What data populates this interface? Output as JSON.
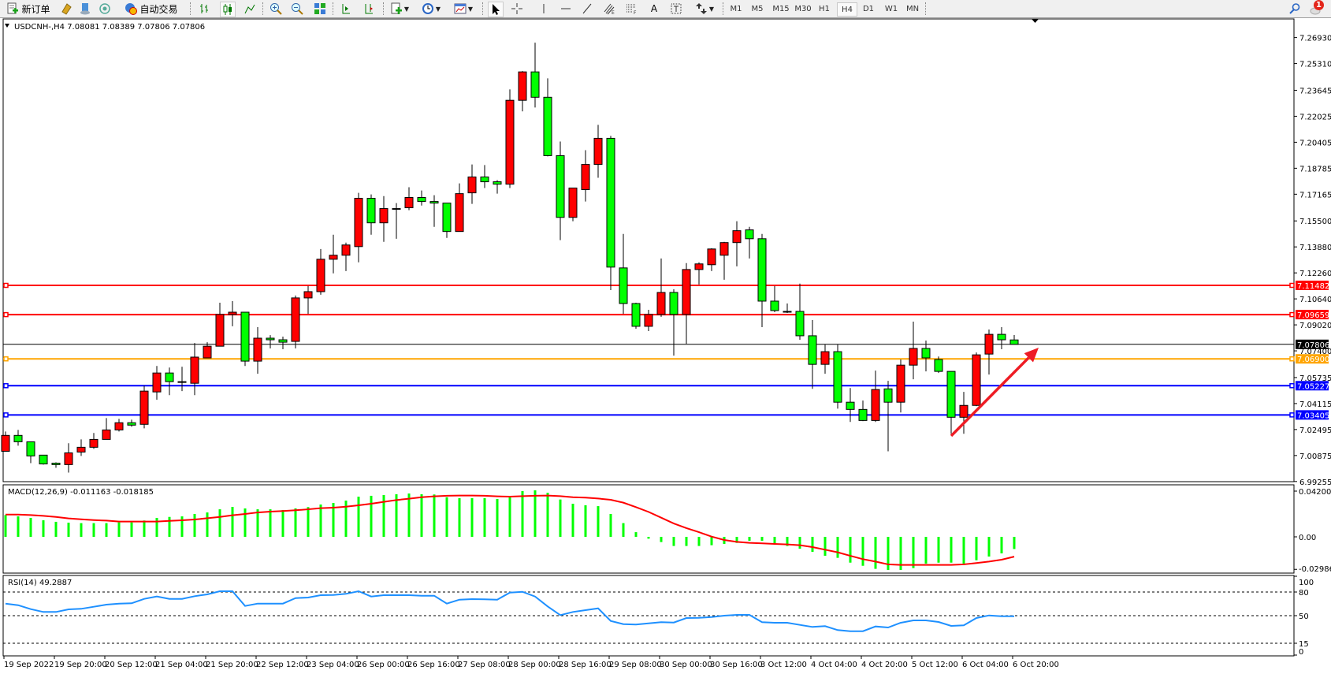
{
  "toolbar": {
    "new_order_label": "新订单",
    "auto_trading_label": "自动交易",
    "timeframes": [
      "M1",
      "M5",
      "M15",
      "M30",
      "H1",
      "H4",
      "D1",
      "W1",
      "MN"
    ],
    "active_timeframe": "H4",
    "notification_count": "1",
    "icons": [
      "new-order-icon",
      "metaeditor-icon",
      "navigator-icon",
      "signals-icon",
      "auto-trading-icon",
      "bar-chart-icon",
      "candlestick-icon",
      "line-chart-icon",
      "zoom-in-icon",
      "zoom-out-icon",
      "tile-windows-icon",
      "auto-scroll-icon",
      "chart-shift-icon",
      "indicators-icon",
      "periods-icon",
      "templates-icon",
      "cursor-icon",
      "crosshair-icon",
      "vertical-line-icon",
      "horizontal-line-icon",
      "trendline-icon",
      "fibo-channel-icon",
      "fibo-retracement-icon",
      "text-icon",
      "text-label-icon",
      "arrows-icon",
      "search-icon",
      "notification-icon"
    ]
  },
  "chart": {
    "header": "USDCNH-,H4  7.08081 7.08389 7.07806 7.07806",
    "up_color": "#ff0000",
    "down_color": "#00ff00"
  },
  "chart_data": [
    {
      "type": "candlestick",
      "symbol": "USDCNH-",
      "timeframe": "H4",
      "ylim": [
        6.99255,
        7.2693
      ],
      "y_ticks": [
        "7.26930",
        "7.25310",
        "7.23645",
        "7.22025",
        "7.20405",
        "7.18785",
        "7.17165",
        "7.15500",
        "7.13880",
        "7.12260",
        "7.10640",
        "7.09020",
        "7.07400",
        "7.05735",
        "7.04115",
        "7.02495",
        "7.00875",
        "6.99255"
      ],
      "x_ticks": [
        "19 Sep 2022",
        "19 Sep 20:00",
        "20 Sep 12:00",
        "21 Sep 04:00",
        "21 Sep 20:00",
        "22 Sep 12:00",
        "23 Sep 04:00",
        "26 Sep 00:00",
        "26 Sep 16:00",
        "27 Sep 08:00",
        "28 Sep 00:00",
        "28 Sep 16:00",
        "29 Sep 08:00",
        "30 Sep 00:00",
        "30 Sep 16:00",
        "3 Oct 12:00",
        "4 Oct 04:00",
        "4 Oct 20:00",
        "5 Oct 12:00",
        "6 Oct 04:00",
        "6 Oct 20:00"
      ],
      "ohlc": [
        [
          7.0114,
          7.0237,
          7.0114,
          7.0213
        ],
        [
          7.0213,
          7.0247,
          7.0149,
          7.0173
        ],
        [
          7.0173,
          7.0173,
          7.004,
          7.0085
        ],
        [
          7.009,
          7.009,
          7.0031,
          7.0035
        ],
        [
          7.004,
          7.0045,
          7.0011,
          7.0031
        ],
        [
          7.0031,
          7.0164,
          6.9981,
          7.0104
        ],
        [
          7.0109,
          7.0188,
          7.0085,
          7.0139
        ],
        [
          7.0139,
          7.0228,
          7.0129,
          7.0188
        ],
        [
          7.0188,
          7.0321,
          7.0188,
          7.0247
        ],
        [
          7.0247,
          7.0316,
          7.0237,
          7.0292
        ],
        [
          7.0292,
          7.0311,
          7.0267,
          7.0277
        ],
        [
          7.0282,
          7.0523,
          7.0257,
          7.0489
        ],
        [
          7.0484,
          7.0646,
          7.0435,
          7.0602
        ],
        [
          7.0602,
          7.0636,
          7.0464,
          7.0548
        ],
        [
          7.0548,
          7.0641,
          7.0489,
          7.0548
        ],
        [
          7.0538,
          7.0789,
          7.0464,
          7.0701
        ],
        [
          7.0696,
          7.0794,
          7.0696,
          7.0769
        ],
        [
          7.0769,
          7.104,
          7.0769,
          7.0967
        ],
        [
          7.0967,
          7.105,
          7.0893,
          7.0981
        ],
        [
          7.0981,
          7.0981,
          7.0646,
          7.0676
        ],
        [
          7.0676,
          7.0888,
          7.0597,
          7.0819
        ],
        [
          7.0819,
          7.0838,
          7.0755,
          7.0809
        ],
        [
          7.0809,
          7.0829,
          7.075,
          7.0794
        ],
        [
          7.0799,
          7.1085,
          7.0755,
          7.107
        ],
        [
          7.107,
          7.1144,
          7.0971,
          7.1109
        ],
        [
          7.1109,
          7.1375,
          7.109,
          7.1311
        ],
        [
          7.1311,
          7.1464,
          7.1223,
          7.1336
        ],
        [
          7.1336,
          7.1415,
          7.1237,
          7.14
        ],
        [
          7.139,
          7.1725,
          7.1292,
          7.1691
        ],
        [
          7.1691,
          7.1715,
          7.1464,
          7.1538
        ],
        [
          7.1538,
          7.1705,
          7.142,
          7.1627
        ],
        [
          7.1627,
          7.1661,
          7.1439,
          7.1627
        ],
        [
          7.1632,
          7.176,
          7.1617,
          7.1696
        ],
        [
          7.1696,
          7.174,
          7.1646,
          7.1671
        ],
        [
          7.1671,
          7.171,
          7.1513,
          7.1661
        ],
        [
          7.1661,
          7.1661,
          7.1444,
          7.1484
        ],
        [
          7.1484,
          7.1784,
          7.1484,
          7.172
        ],
        [
          7.1725,
          7.1902,
          7.1656,
          7.1824
        ],
        [
          7.1824,
          7.1898,
          7.1755,
          7.1794
        ],
        [
          7.1794,
          7.1804,
          7.172,
          7.1779
        ],
        [
          7.1779,
          7.237,
          7.1755,
          7.2302
        ],
        [
          7.2302,
          7.2484,
          7.2233,
          7.2479
        ],
        [
          7.2479,
          7.2661,
          7.2257,
          7.2321
        ],
        [
          7.2321,
          7.2439,
          7.1952,
          7.1957
        ],
        [
          7.1957,
          7.2045,
          7.143,
          7.1572
        ],
        [
          7.1572,
          7.1755,
          7.1548,
          7.1755
        ],
        [
          7.1745,
          7.1991,
          7.1671,
          7.1902
        ],
        [
          7.1902,
          7.2149,
          7.1819,
          7.2065
        ],
        [
          7.2065,
          7.208,
          7.1119,
          7.1262
        ],
        [
          7.1257,
          7.1469,
          7.0971,
          7.1035
        ],
        [
          7.1035,
          7.104,
          7.0878,
          7.0893
        ],
        [
          7.0893,
          7.0996,
          7.0863,
          7.0967
        ],
        [
          7.0967,
          7.1316,
          7.0952,
          7.1104
        ],
        [
          7.1104,
          7.1124,
          7.071,
          7.0967
        ],
        [
          7.0967,
          7.1287,
          7.0784,
          7.1247
        ],
        [
          7.1247,
          7.1292,
          7.1154,
          7.1282
        ],
        [
          7.1277,
          7.138,
          7.1237,
          7.1375
        ],
        [
          7.1336,
          7.142,
          7.1183,
          7.1415
        ],
        [
          7.1415,
          7.1548,
          7.1267,
          7.1489
        ],
        [
          7.1494,
          7.1513,
          7.1316,
          7.1439
        ],
        [
          7.1439,
          7.1469,
          7.0888,
          7.105
        ],
        [
          7.105,
          7.1144,
          7.0981,
          7.0991
        ],
        [
          7.0986,
          7.1035,
          7.0976,
          7.0986
        ],
        [
          7.0986,
          7.1159,
          7.0809,
          7.0834
        ],
        [
          7.0834,
          7.0932,
          7.0503,
          7.0656
        ],
        [
          7.0656,
          7.0779,
          7.0597,
          7.0735
        ],
        [
          7.0735,
          7.0779,
          7.038,
          7.042
        ],
        [
          7.042,
          7.0508,
          7.0297,
          7.0375
        ],
        [
          7.0375,
          7.043,
          7.0302,
          7.0306
        ],
        [
          7.0306,
          7.0617,
          7.0297,
          7.0499
        ],
        [
          7.0503,
          7.0553,
          7.0114,
          7.042
        ],
        [
          7.042,
          7.0686,
          7.0356,
          7.0651
        ],
        [
          7.0651,
          7.0922,
          7.0563,
          7.0755
        ],
        [
          7.0755,
          7.0804,
          7.0612,
          7.0696
        ],
        [
          7.0686,
          7.0705,
          7.0602,
          7.0612
        ],
        [
          7.0612,
          7.0612,
          7.0223,
          7.0326
        ],
        [
          7.0326,
          7.0484,
          7.0223,
          7.04
        ],
        [
          7.04,
          7.073,
          7.0395,
          7.0715
        ],
        [
          7.072,
          7.0873,
          7.0592,
          7.0843
        ],
        [
          7.0843,
          7.0888,
          7.075,
          7.0809
        ],
        [
          7.08081,
          7.08389,
          7.07806,
          7.07806
        ]
      ],
      "horizontal_lines": [
        {
          "price": "7.11482",
          "color": "#ff0000"
        },
        {
          "price": "7.09659",
          "color": "#ff0000"
        },
        {
          "price": "7.07806",
          "color": "#000000"
        },
        {
          "price": "7.06900",
          "color": "#ffa500"
        },
        {
          "price": "7.05227",
          "color": "#0000ff"
        },
        {
          "price": "7.03405",
          "color": "#0000ff"
        }
      ],
      "annotation_arrow": {
        "color": "#ee1c24",
        "from_bar": 75,
        "from_price": 7.021,
        "to_bar": 82,
        "to_price": 7.075
      }
    },
    {
      "type": "bar+line",
      "title": "MACD(12,26,9) -0.011163 -0.018185",
      "ylim": [
        -0.029864,
        0.042001
      ],
      "y_ticks": [
        "0.042001",
        "0.00",
        "-0.029864"
      ],
      "histogram_color": "#00ff00",
      "signal_color": "#ff0000",
      "histogram": [
        0.02,
        0.0188,
        0.0174,
        0.0152,
        0.0138,
        0.013,
        0.0126,
        0.0126,
        0.0126,
        0.0133,
        0.0133,
        0.015,
        0.0174,
        0.0183,
        0.0188,
        0.021,
        0.0224,
        0.0253,
        0.0275,
        0.0261,
        0.0253,
        0.0253,
        0.0246,
        0.0261,
        0.0273,
        0.0297,
        0.0311,
        0.0333,
        0.0369,
        0.0377,
        0.0384,
        0.0391,
        0.0398,
        0.0391,
        0.0389,
        0.0364,
        0.0355,
        0.0355,
        0.0355,
        0.0348,
        0.0364,
        0.042,
        0.0427,
        0.0405,
        0.0343,
        0.0304,
        0.029,
        0.0282,
        0.021,
        0.0126,
        0.0043,
        -0.0017,
        -0.0048,
        -0.0084,
        -0.0084,
        -0.0084,
        -0.0077,
        -0.0065,
        -0.0056,
        -0.0036,
        -0.0036,
        -0.006,
        -0.0084,
        -0.0109,
        -0.0138,
        -0.0174,
        -0.0193,
        -0.0237,
        -0.0266,
        -0.0294,
        -0.0304,
        -0.0304,
        -0.0287,
        -0.0246,
        -0.0237,
        -0.0237,
        -0.0246,
        -0.0215,
        -0.0181,
        -0.0152,
        -0.0112
      ],
      "signal": [
        0.0205,
        0.0205,
        0.02,
        0.0193,
        0.0183,
        0.0169,
        0.0161,
        0.0154,
        0.0149,
        0.014,
        0.014,
        0.014,
        0.014,
        0.0147,
        0.0152,
        0.0159,
        0.0171,
        0.0183,
        0.0198,
        0.021,
        0.0224,
        0.0232,
        0.0237,
        0.0244,
        0.0253,
        0.0263,
        0.0268,
        0.0277,
        0.029,
        0.0304,
        0.0321,
        0.0338,
        0.035,
        0.0364,
        0.0372,
        0.0377,
        0.0379,
        0.0379,
        0.0377,
        0.0372,
        0.0369,
        0.0374,
        0.0377,
        0.0379,
        0.0374,
        0.0364,
        0.036,
        0.0352,
        0.034,
        0.0314,
        0.0273,
        0.0229,
        0.0176,
        0.0123,
        0.008,
        0.0043,
        0.0002,
        -0.0029,
        -0.0046,
        -0.0055,
        -0.006,
        -0.0065,
        -0.007,
        -0.0077,
        -0.0094,
        -0.0118,
        -0.0142,
        -0.0174,
        -0.0205,
        -0.0227,
        -0.0253,
        -0.0258,
        -0.0258,
        -0.0258,
        -0.0258,
        -0.0258,
        -0.0253,
        -0.0241,
        -0.0227,
        -0.021,
        -0.0182
      ]
    },
    {
      "type": "line",
      "title": "RSI(14) 49.2887",
      "ylim": [
        0,
        100
      ],
      "y_ticks": [
        "100",
        "80",
        "50",
        "15",
        "0"
      ],
      "levels": [
        80,
        50,
        15
      ],
      "color": "#1e90ff",
      "values": [
        65.3,
        63.3,
        58.3,
        54.7,
        54.7,
        58,
        58.7,
        61.3,
        64,
        65.3,
        65.7,
        71.3,
        74.3,
        71.3,
        71.3,
        74.7,
        77,
        81,
        81,
        62.3,
        65.3,
        65.3,
        65.3,
        72.3,
        73,
        76,
        76.3,
        77.7,
        81,
        74.3,
        76,
        76,
        76,
        75.3,
        75.3,
        65.3,
        70.3,
        71,
        70.7,
        70.3,
        79.3,
        80.3,
        74.3,
        61.7,
        50.7,
        54.7,
        57,
        59.3,
        43.3,
        39.3,
        38.7,
        40.3,
        41.7,
        41.3,
        47,
        47.3,
        48.3,
        50,
        51,
        51,
        41.7,
        41,
        41,
        38.3,
        35.7,
        36.7,
        31.7,
        30.3,
        30.3,
        36.3,
        35,
        41,
        44,
        44,
        42,
        37,
        37.7,
        47,
        50.3,
        49.3,
        49.3
      ]
    }
  ]
}
